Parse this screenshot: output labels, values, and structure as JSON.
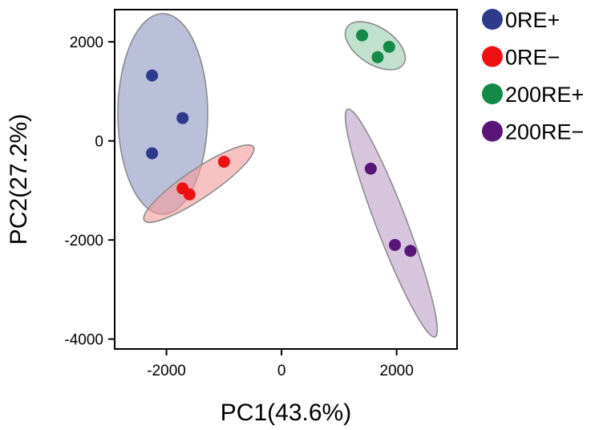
{
  "chart_data": {
    "type": "scatter",
    "title": "",
    "xlabel": "PC1(43.6%)",
    "ylabel": "PC2(27.2%)",
    "xlim": [
      -2900,
      3050
    ],
    "ylim": [
      -4200,
      2650
    ],
    "xticks": [
      -2000,
      0,
      2000
    ],
    "yticks": [
      -4000,
      -2000,
      0,
      2000
    ],
    "xtick_labels": [
      "-2000",
      "0",
      "2000"
    ],
    "ytick_labels": [
      "-4000",
      "-2000",
      "0",
      "2000"
    ],
    "grid": false,
    "legend_position": "right-top",
    "series": [
      {
        "name": "0RE+",
        "color": "#2e3a8c",
        "ellipse_fill": "#8f97c4",
        "points": [
          {
            "x": -2250,
            "y": 1320
          },
          {
            "x": -1720,
            "y": 460
          },
          {
            "x": -2250,
            "y": -250
          }
        ]
      },
      {
        "name": "0RE−",
        "color": "#ee1010",
        "ellipse_fill": "#f49c9c",
        "points": [
          {
            "x": -1000,
            "y": -420
          },
          {
            "x": -1720,
            "y": -960
          },
          {
            "x": -1600,
            "y": -1080
          }
        ]
      },
      {
        "name": "200RE+",
        "color": "#138a47",
        "ellipse_fill": "#9bcdb0",
        "points": [
          {
            "x": 1400,
            "y": 2130
          },
          {
            "x": 1870,
            "y": 1900
          },
          {
            "x": 1670,
            "y": 1690
          }
        ]
      },
      {
        "name": "200RE−",
        "color": "#5a1578",
        "ellipse_fill": "#bfa2c9",
        "points": [
          {
            "x": 1550,
            "y": -560
          },
          {
            "x": 1970,
            "y": -2100
          },
          {
            "x": 2240,
            "y": -2220
          }
        ]
      }
    ]
  }
}
